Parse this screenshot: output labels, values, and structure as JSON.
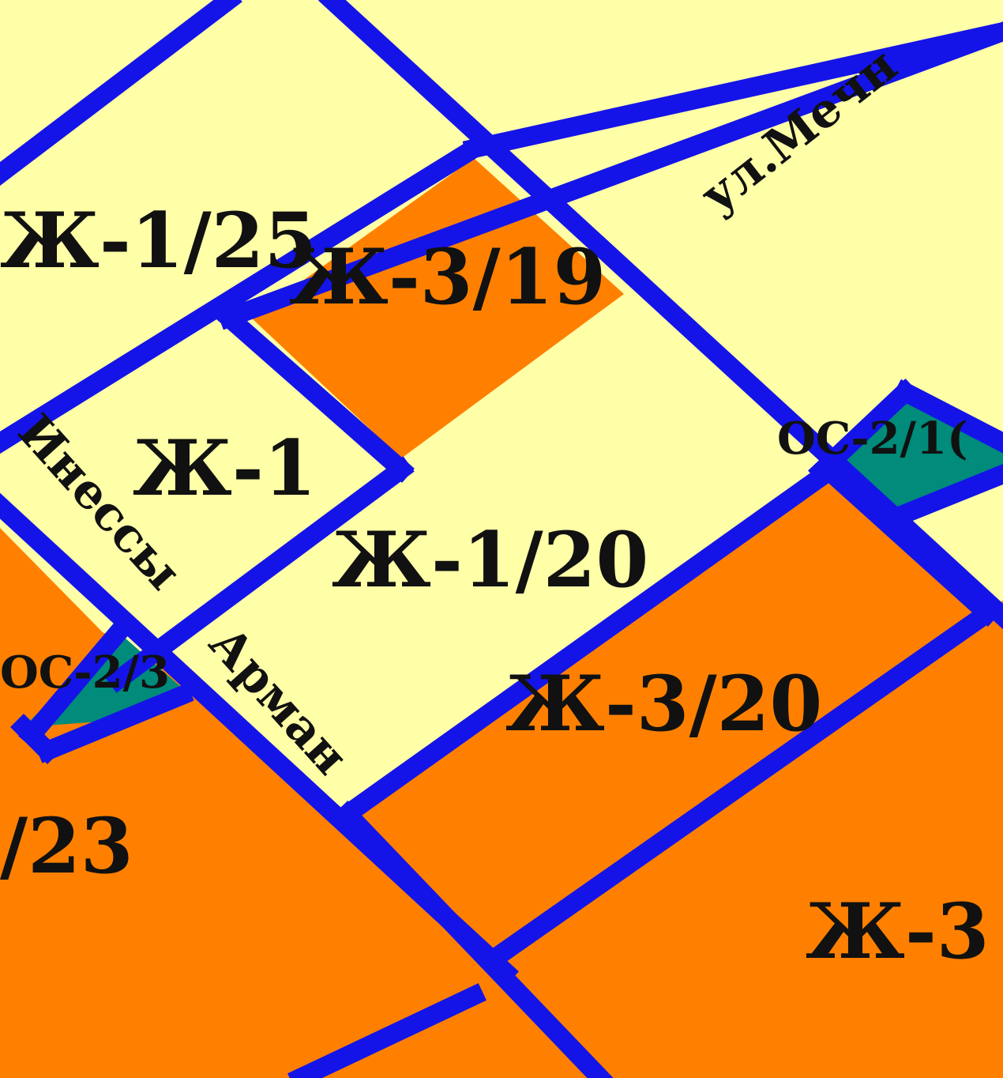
{
  "colors": {
    "residential_low": "#ffffa8",
    "residential_high": "#ff8000",
    "public_zone": "#008b7b",
    "boundary": "#1414e8"
  },
  "zones": {
    "zh_1_25": "Ж-1/25",
    "zh_3_19": "Ж-3/19",
    "zh_1": "Ж-1",
    "zh_1_20": "Ж-1/20",
    "os_2_1x": "ОС-2/1(",
    "os_2_3": "ОС-2/3",
    "zh_3_20": "Ж-3/20",
    "partial_23": "/23",
    "zh_3": "Ж-3"
  },
  "streets": {
    "mechnikova": "ул.Мечн",
    "inessy_armand_a": "Инессы",
    "inessy_armand_b": "Арман"
  }
}
